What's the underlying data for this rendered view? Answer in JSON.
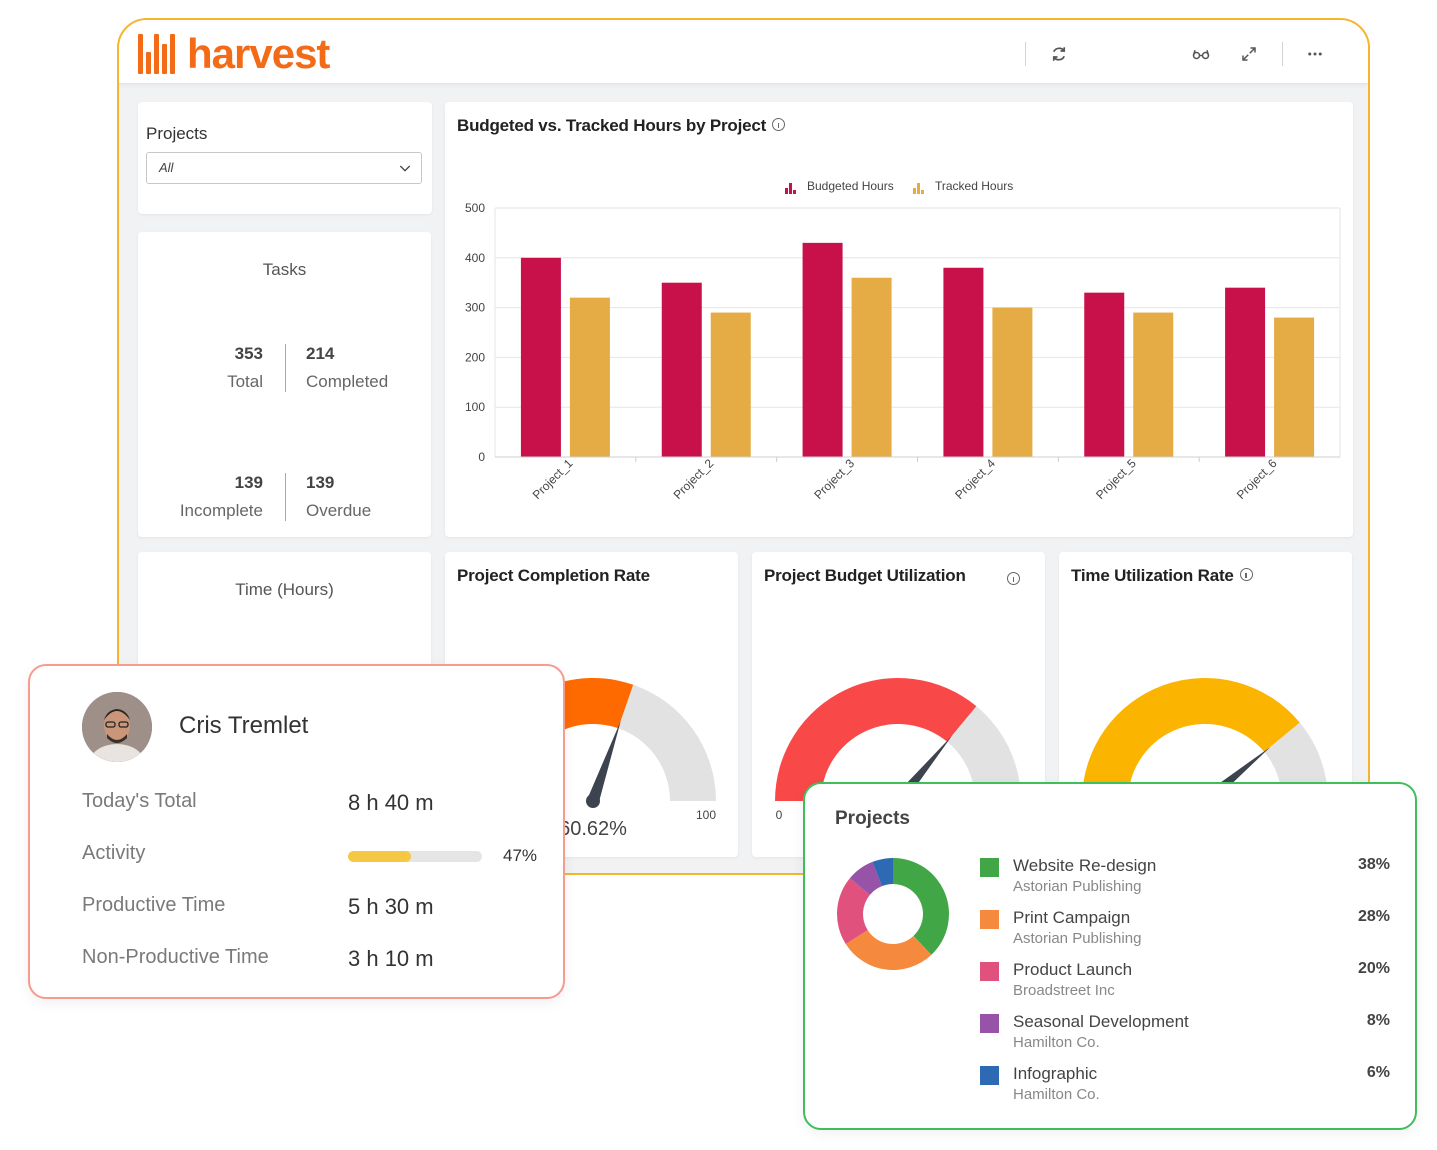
{
  "app": {
    "name": "harvest"
  },
  "filter": {
    "label": "Projects",
    "value": "All"
  },
  "tasks": {
    "title": "Tasks",
    "total": {
      "value": "353",
      "label": "Total"
    },
    "completed": {
      "value": "214",
      "label": "Completed"
    },
    "incomplete": {
      "value": "139",
      "label": "Incomplete"
    },
    "overdue": {
      "value": "139",
      "label": "Overdue"
    }
  },
  "time_card": {
    "title": "Time (Hours)"
  },
  "chart_data": [
    {
      "type": "bar",
      "title": "Budgeted vs. Tracked Hours by Project",
      "categories": [
        "Project_1",
        "Project_2",
        "Project_3",
        "Project_4",
        "Project_5",
        "Project_6"
      ],
      "series": [
        {
          "name": "Budgeted Hours",
          "color": "#c8104a",
          "values": [
            400,
            350,
            430,
            380,
            330,
            340
          ]
        },
        {
          "name": "Tracked Hours",
          "color": "#e5ab45",
          "values": [
            320,
            290,
            360,
            300,
            290,
            280
          ]
        }
      ],
      "yticks": [
        "0",
        "100",
        "200",
        "300",
        "400",
        "500"
      ],
      "ylim": [
        0,
        500
      ],
      "grid": true,
      "legend": "top"
    },
    {
      "type": "gauge",
      "title": "Project Completion Rate",
      "value": 60.62,
      "value_label": "60.62%",
      "min": 0,
      "max": 100,
      "max_label": "100",
      "colors": {
        "fill": "#ff6a00",
        "rest": "#e2e2e2"
      }
    },
    {
      "type": "gauge",
      "title": "Project Budget Utilization",
      "value": 72,
      "min": 0,
      "max": 100,
      "min_label": "0",
      "colors": {
        "fill": "#f94848",
        "rest": "#e2e2e2"
      }
    },
    {
      "type": "gauge",
      "title": "Time Utilization Rate",
      "value": 78,
      "min": 0,
      "max": 100,
      "colors": {
        "fill": "#fbb500",
        "rest": "#e2e2e2"
      }
    },
    {
      "type": "pie",
      "title": "Projects",
      "donut": true,
      "slices": [
        {
          "name": "Website Re-design",
          "client": "Astorian Publishing",
          "value": 38,
          "label": "38%",
          "color": "#41a645"
        },
        {
          "name": "Print Campaign",
          "client": "Astorian Publishing",
          "value": 28,
          "label": "28%",
          "color": "#f58a3f"
        },
        {
          "name": "Product Launch",
          "client": "Broadstreet Inc",
          "value": 20,
          "label": "20%",
          "color": "#e0517e"
        },
        {
          "name": "Seasonal Development",
          "client": "Hamilton Co.",
          "value": 8,
          "label": "8%",
          "color": "#9653a8"
        },
        {
          "name": "Infographic",
          "client": "Hamilton Co.",
          "value": 6,
          "label": "6%",
          "color": "#2e69b3"
        }
      ]
    }
  ],
  "employee": {
    "name": "Cris Tremlet",
    "rows": [
      {
        "label": "Today's Total",
        "value": "8 h 40 m"
      },
      {
        "label": "Activity",
        "value": "47%",
        "fraction": 0.47
      },
      {
        "label": "Productive Time",
        "value": "5 h 30 m"
      },
      {
        "label": "Non-Productive Time",
        "value": "3 h 10 m"
      }
    ]
  },
  "icons": [
    "refresh-icon",
    "glasses-icon",
    "expand-icon",
    "more-icon",
    "info-icon",
    "chevron-down-icon"
  ]
}
